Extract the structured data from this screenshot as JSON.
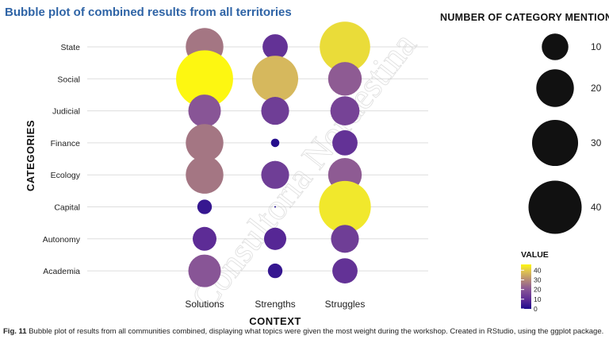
{
  "chart_data": {
    "type": "scatter",
    "title": "Bubble plot of combined results from all territories",
    "xlabel": "CONTEXT",
    "ylabel": "CATEGORIES",
    "x_categories": [
      "Solutions",
      "Strengths",
      "Struggles"
    ],
    "y_categories": [
      "State",
      "Social",
      "Judicial",
      "Finance",
      "Ecology",
      "Capital",
      "Autonomy",
      "Academia"
    ],
    "points": [
      {
        "x": "Solutions",
        "y": "State",
        "value": 20
      },
      {
        "x": "Solutions",
        "y": "Social",
        "value": 46
      },
      {
        "x": "Solutions",
        "y": "Judicial",
        "value": 15
      },
      {
        "x": "Solutions",
        "y": "Finance",
        "value": 20
      },
      {
        "x": "Solutions",
        "y": "Ecology",
        "value": 20
      },
      {
        "x": "Solutions",
        "y": "Capital",
        "value": 3
      },
      {
        "x": "Solutions",
        "y": "Autonomy",
        "value": 8
      },
      {
        "x": "Solutions",
        "y": "Academia",
        "value": 15
      },
      {
        "x": "Strengths",
        "y": "State",
        "value": 9
      },
      {
        "x": "Strengths",
        "y": "Social",
        "value": 30
      },
      {
        "x": "Strengths",
        "y": "Judicial",
        "value": 11
      },
      {
        "x": "Strengths",
        "y": "Finance",
        "value": 1
      },
      {
        "x": "Strengths",
        "y": "Ecology",
        "value": 11
      },
      {
        "x": "Strengths",
        "y": "Capital",
        "value": 0
      },
      {
        "x": "Strengths",
        "y": "Autonomy",
        "value": 7
      },
      {
        "x": "Strengths",
        "y": "Academia",
        "value": 3
      },
      {
        "x": "Struggles",
        "y": "State",
        "value": 36
      },
      {
        "x": "Struggles",
        "y": "Social",
        "value": 16
      },
      {
        "x": "Struggles",
        "y": "Judicial",
        "value": 12
      },
      {
        "x": "Struggles",
        "y": "Finance",
        "value": 9
      },
      {
        "x": "Struggles",
        "y": "Ecology",
        "value": 16
      },
      {
        "x": "Struggles",
        "y": "Capital",
        "value": 38
      },
      {
        "x": "Struggles",
        "y": "Autonomy",
        "value": 11
      },
      {
        "x": "Struggles",
        "y": "Academia",
        "value": 9
      }
    ],
    "size_legend": {
      "title": "NUMBER OF CATEGORY MENTIONS",
      "values": [
        10,
        20,
        30,
        40
      ],
      "labels": [
        "10",
        "20",
        "30",
        "40"
      ]
    },
    "color_legend": {
      "title": "VALUE",
      "ticks": [
        0,
        10,
        20,
        30,
        40
      ],
      "labels": [
        "0",
        "10",
        "20",
        "30",
        "40"
      ],
      "range": [
        0,
        46
      ]
    },
    "colors": {
      "title": "#2f64a6",
      "size_legend_fill": "#111111",
      "gradient": [
        "#1e0a8c",
        "#5b2a96",
        "#8a5796",
        "#b58a77",
        "#d9bc5a",
        "#f2ea2a",
        "#fdf711"
      ],
      "gridline": "#dddddd"
    },
    "grid": true,
    "legend_position": "right"
  },
  "caption": {
    "lead": "Fig. 11",
    "text": "Bubble plot of results from all communities combined, displaying what topics were given the most weight during the workshop. Created in RStudio, using the ggplot package."
  },
  "watermark": {
    "text": "Consultoria Nordestina"
  }
}
